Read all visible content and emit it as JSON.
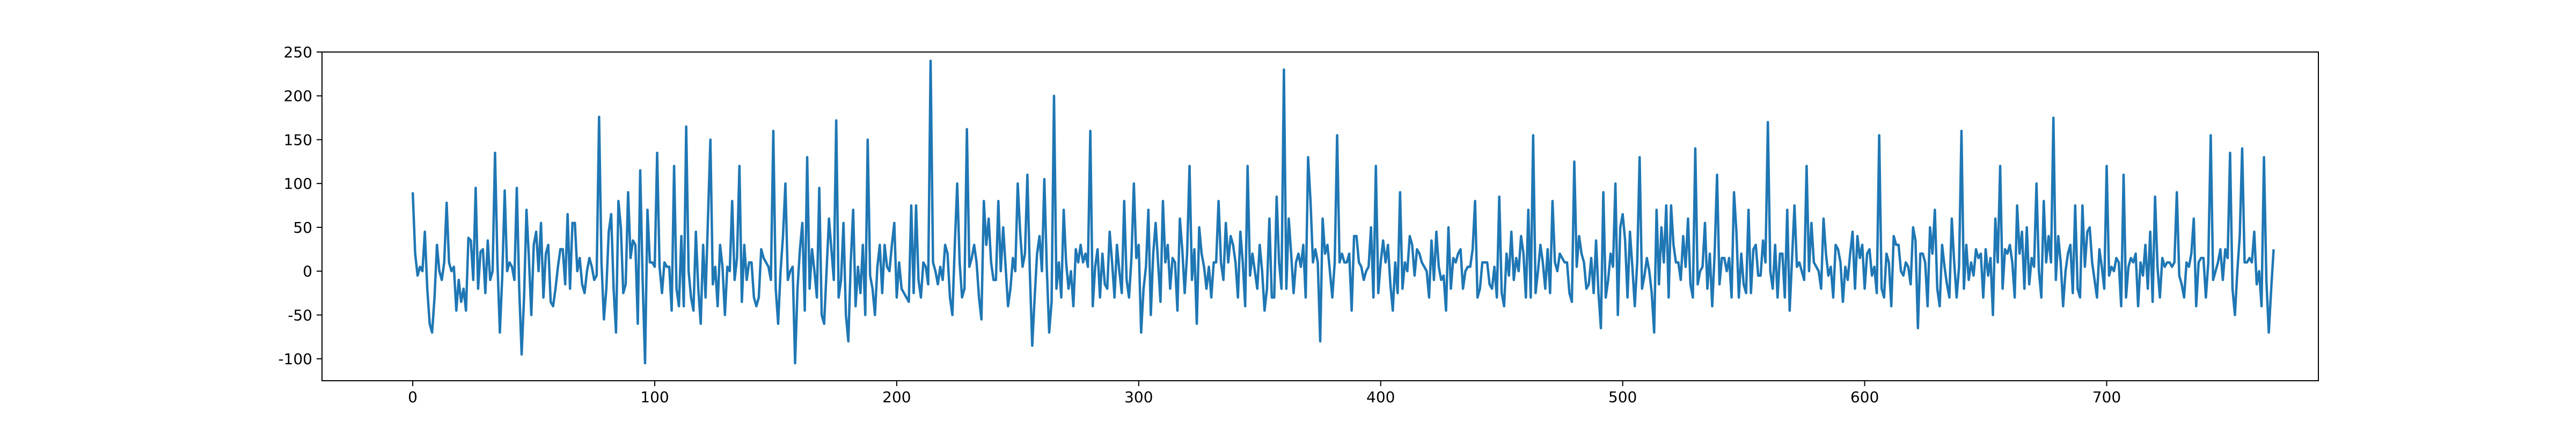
{
  "chart_data": {
    "type": "line",
    "title": "",
    "xlabel": "",
    "ylabel": "",
    "xlim": [
      -37.5,
      787.5
    ],
    "ylim": [
      -125,
      250
    ],
    "x_ticks": [
      0,
      100,
      200,
      300,
      400,
      500,
      600,
      700
    ],
    "y_ticks": [
      -100,
      -50,
      0,
      50,
      100,
      150,
      200,
      250
    ],
    "grid": false,
    "legend": "none",
    "series": [
      {
        "color": "#1f77b4",
        "x_start": 0,
        "x_step": 1,
        "values": [
          90,
          20,
          -5,
          5,
          0,
          45,
          -20,
          -60,
          -70,
          -30,
          30,
          0,
          -10,
          10,
          78,
          10,
          0,
          5,
          -45,
          -10,
          -35,
          -20,
          -45,
          38,
          35,
          -10,
          95,
          -20,
          22,
          25,
          -25,
          35,
          -10,
          0,
          135,
          10,
          -70,
          -5,
          92,
          0,
          10,
          5,
          -10,
          95,
          -20,
          -95,
          -30,
          70,
          15,
          -50,
          30,
          45,
          0,
          55,
          -30,
          20,
          30,
          -35,
          -40,
          -20,
          5,
          25,
          25,
          -15,
          65,
          -20,
          55,
          55,
          0,
          15,
          -15,
          -25,
          0,
          15,
          5,
          -10,
          -5,
          176,
          10,
          -55,
          -20,
          45,
          65,
          -20,
          -70,
          80,
          50,
          -25,
          -15,
          90,
          15,
          35,
          30,
          -60,
          115,
          -10,
          -105,
          70,
          10,
          10,
          5,
          135,
          5,
          -25,
          10,
          5,
          5,
          -45,
          120,
          -20,
          -40,
          40,
          -40,
          165,
          0,
          -30,
          -45,
          45,
          -20,
          -60,
          30,
          -30,
          60,
          150,
          -15,
          5,
          -40,
          30,
          5,
          -50,
          5,
          0,
          80,
          -10,
          15,
          120,
          -35,
          30,
          -10,
          10,
          10,
          -30,
          -40,
          -30,
          25,
          15,
          10,
          5,
          -10,
          160,
          -20,
          -60,
          0,
          40,
          100,
          -10,
          0,
          5,
          -105,
          -20,
          25,
          55,
          -45,
          130,
          -20,
          25,
          0,
          -30,
          95,
          -50,
          -60,
          0,
          60,
          25,
          -10,
          172,
          -30,
          -10,
          55,
          -50,
          -80,
          10,
          70,
          -40,
          5,
          -25,
          30,
          -50,
          150,
          -5,
          -20,
          -50,
          5,
          30,
          -25,
          30,
          5,
          0,
          30,
          55,
          -30,
          10,
          -20,
          -25,
          -30,
          -35,
          75,
          -25,
          75,
          -10,
          -30,
          10,
          5,
          -15,
          240,
          10,
          0,
          -15,
          5,
          -10,
          30,
          20,
          -30,
          -50,
          30,
          100,
          10,
          -30,
          -20,
          162,
          5,
          15,
          30,
          10,
          -30,
          -55,
          80,
          30,
          60,
          10,
          -10,
          -10,
          80,
          0,
          50,
          5,
          -40,
          -20,
          15,
          0,
          100,
          45,
          5,
          20,
          110,
          0,
          -85,
          -30,
          20,
          40,
          0,
          105,
          5,
          -70,
          -35,
          200,
          -20,
          10,
          -30,
          70,
          10,
          -20,
          0,
          -40,
          25,
          10,
          30,
          10,
          20,
          5,
          160,
          -40,
          5,
          25,
          -30,
          20,
          -15,
          -20,
          45,
          10,
          -30,
          30,
          0,
          -25,
          80,
          -10,
          -30,
          15,
          100,
          15,
          30,
          -70,
          -20,
          5,
          70,
          -50,
          20,
          55,
          10,
          -35,
          80,
          10,
          30,
          -20,
          15,
          10,
          -45,
          60,
          25,
          -25,
          20,
          120,
          -10,
          25,
          -60,
          50,
          20,
          5,
          -20,
          5,
          -30,
          10,
          10,
          80,
          10,
          -10,
          55,
          10,
          40,
          30,
          10,
          -30,
          45,
          10,
          -40,
          120,
          -5,
          20,
          0,
          -20,
          30,
          0,
          -45,
          -20,
          60,
          -30,
          -30,
          85,
          10,
          -20,
          230,
          -20,
          60,
          20,
          -25,
          10,
          20,
          5,
          30,
          -30,
          130,
          80,
          10,
          25,
          10,
          -80,
          60,
          20,
          30,
          0,
          -30,
          10,
          155,
          10,
          20,
          10,
          10,
          20,
          -45,
          40,
          40,
          10,
          5,
          -10,
          0,
          5,
          50,
          -30,
          120,
          -25,
          10,
          35,
          10,
          30,
          -15,
          -45,
          10,
          -25,
          90,
          -20,
          10,
          0,
          40,
          30,
          -5,
          25,
          20,
          10,
          5,
          0,
          -30,
          35,
          -10,
          45,
          5,
          -10,
          -5,
          -45,
          50,
          -20,
          15,
          10,
          20,
          25,
          -20,
          0,
          5,
          5,
          25,
          80,
          -30,
          -20,
          10,
          10,
          10,
          -15,
          -20,
          5,
          -30,
          85,
          -25,
          -40,
          20,
          -5,
          45,
          -10,
          15,
          0,
          40,
          20,
          -30,
          70,
          -30,
          155,
          -25,
          0,
          30,
          10,
          -20,
          25,
          -25,
          80,
          10,
          0,
          20,
          15,
          10,
          10,
          -25,
          -35,
          125,
          5,
          40,
          20,
          10,
          -20,
          -15,
          15,
          -25,
          35,
          -25,
          -65,
          90,
          -30,
          -10,
          20,
          5,
          100,
          -50,
          50,
          65,
          35,
          -30,
          45,
          5,
          -40,
          10,
          130,
          -20,
          -5,
          15,
          0,
          -25,
          -70,
          70,
          -15,
          50,
          10,
          75,
          -30,
          75,
          30,
          10,
          10,
          -10,
          40,
          5,
          60,
          -15,
          -30,
          140,
          -15,
          0,
          5,
          55,
          -20,
          20,
          -40,
          20,
          110,
          -15,
          15,
          15,
          0,
          15,
          -30,
          90,
          45,
          -30,
          20,
          -15,
          -25,
          70,
          -25,
          25,
          30,
          -5,
          -5,
          35,
          10,
          170,
          0,
          -20,
          30,
          -30,
          20,
          20,
          -30,
          70,
          -45,
          15,
          75,
          5,
          10,
          0,
          -10,
          120,
          0,
          55,
          10,
          5,
          0,
          -20,
          60,
          20,
          -5,
          5,
          -30,
          30,
          25,
          10,
          -35,
          5,
          -10,
          20,
          45,
          -20,
          40,
          15,
          30,
          -20,
          20,
          25,
          -5,
          5,
          -25,
          155,
          -20,
          -30,
          20,
          10,
          -40,
          40,
          30,
          30,
          0,
          -5,
          10,
          5,
          -15,
          50,
          35,
          -65,
          20,
          20,
          10,
          -40,
          50,
          20,
          70,
          -20,
          -40,
          30,
          5,
          -15,
          -30,
          60,
          10,
          -30,
          5,
          160,
          -20,
          30,
          -10,
          10,
          -5,
          25,
          15,
          20,
          -30,
          25,
          -5,
          15,
          -50,
          60,
          10,
          120,
          -20,
          25,
          20,
          30,
          10,
          -30,
          75,
          20,
          45,
          -20,
          50,
          -15,
          15,
          5,
          100,
          0,
          -30,
          80,
          10,
          40,
          10,
          175,
          -10,
          40,
          10,
          -40,
          0,
          20,
          30,
          -25,
          75,
          -20,
          -30,
          75,
          5,
          45,
          50,
          10,
          -10,
          -30,
          25,
          5,
          -20,
          120,
          -5,
          5,
          0,
          15,
          10,
          -40,
          110,
          -30,
          5,
          15,
          10,
          20,
          -40,
          10,
          -5,
          30,
          -20,
          45,
          -35,
          85,
          5,
          -30,
          15,
          5,
          10,
          10,
          5,
          10,
          90,
          -5,
          -15,
          -30,
          10,
          5,
          20,
          60,
          -40,
          10,
          15,
          15,
          -30,
          10,
          155,
          -10,
          0,
          10,
          25,
          -10,
          25,
          15,
          135,
          -20,
          -50,
          0,
          40,
          140,
          10,
          10,
          15,
          10,
          45,
          -15,
          0,
          -40,
          130,
          -10,
          -70,
          -20,
          25
        ]
      }
    ]
  }
}
